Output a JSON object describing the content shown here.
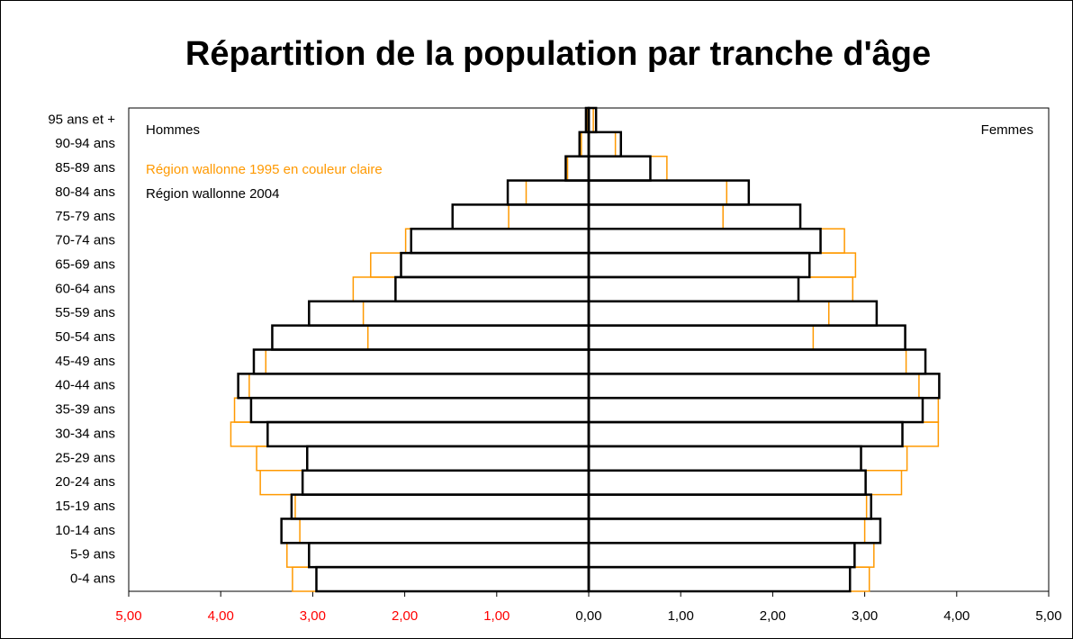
{
  "chart_data": {
    "type": "pyramid",
    "title": "Répartition de la population par tranche d'âge",
    "side_labels": [
      "Hommes",
      "Femmes"
    ],
    "categories": [
      "0-4 ans",
      "5-9 ans",
      "10-14 ans",
      "15-19 ans",
      "20-24 ans",
      "25-29 ans",
      "30-34 ans",
      "35-39 ans",
      "40-44 ans",
      "45-49 ans",
      "50-54 ans",
      "55-59 ans",
      "60-64 ans",
      "65-69 ans",
      "70-74 ans",
      "75-79 ans",
      "80-84 ans",
      "85-89 ans",
      "90-94 ans",
      "95 ans et +"
    ],
    "series": [
      {
        "name": "Région wallonne 1995 en couleur claire",
        "color": "#ff9900",
        "hommes": [
          -3.22,
          -3.28,
          -3.14,
          -3.19,
          -3.57,
          -3.61,
          -3.89,
          -3.85,
          -3.69,
          -3.51,
          -2.4,
          -2.45,
          -2.56,
          -2.37,
          -1.99,
          -0.87,
          -0.68,
          -0.23,
          -0.08,
          -0.02
        ],
        "femmes": [
          3.05,
          3.1,
          3.0,
          3.02,
          3.4,
          3.46,
          3.8,
          3.8,
          3.59,
          3.45,
          2.44,
          2.61,
          2.87,
          2.9,
          2.78,
          1.46,
          1.5,
          0.85,
          0.29,
          0.05
        ]
      },
      {
        "name": "Région wallonne 2004",
        "color": "#000000",
        "hommes": [
          -2.96,
          -3.04,
          -3.34,
          -3.23,
          -3.11,
          -3.06,
          -3.49,
          -3.67,
          -3.81,
          -3.64,
          -3.44,
          -3.04,
          -2.1,
          -2.04,
          -1.93,
          -1.48,
          -0.88,
          -0.25,
          -0.1,
          -0.03
        ],
        "femmes": [
          2.84,
          2.89,
          3.17,
          3.07,
          3.01,
          2.96,
          3.41,
          3.63,
          3.81,
          3.66,
          3.44,
          3.13,
          2.28,
          2.4,
          2.52,
          2.3,
          1.74,
          0.67,
          0.35,
          0.08
        ]
      }
    ],
    "xlim": [
      -5,
      5
    ],
    "xticks": [
      {
        "value": -5,
        "label": "5,00"
      },
      {
        "value": -4,
        "label": "4,00"
      },
      {
        "value": -3,
        "label": "3,00"
      },
      {
        "value": -2,
        "label": "2,00"
      },
      {
        "value": -1,
        "label": "1,00"
      },
      {
        "value": 0,
        "label": "0,00"
      },
      {
        "value": 1,
        "label": "1,00"
      },
      {
        "value": 2,
        "label": "2,00"
      },
      {
        "value": 3,
        "label": "3,00"
      },
      {
        "value": 4,
        "label": "4,00"
      },
      {
        "value": 5,
        "label": "5,00"
      }
    ],
    "left_tick_color": "#ff0000",
    "tick_color": "#000000"
  }
}
